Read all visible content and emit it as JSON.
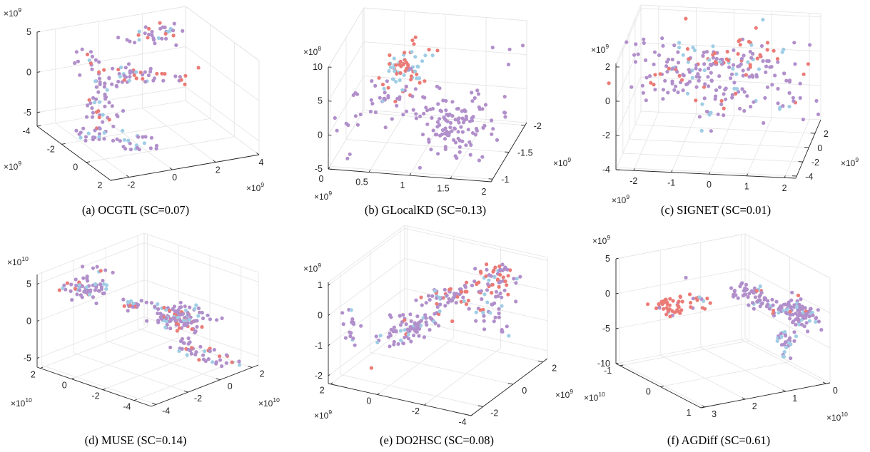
{
  "series_colors": [
    "#B18FCB",
    "#EB7B76",
    "#9FCDE5"
  ],
  "chart_data": [
    {
      "type": "scatter3d",
      "caption": "(a) OCGTL (SC=0.07)",
      "xlim": [
        -2.85,
        4
      ],
      "ylim": [
        -4,
        2
      ],
      "zlim": [
        -6.7,
        5
      ],
      "xticks": [
        -2,
        0,
        2,
        4
      ],
      "yticks": [
        -4,
        -2,
        0,
        2
      ],
      "zticks": [
        -5,
        0,
        5
      ],
      "x_multiplier": {
        "base": "×10",
        "exp": "9"
      },
      "y_multiplier": {
        "base": "×10",
        "exp": "9"
      },
      "z_multiplier": {
        "base": "×10",
        "exp": "9"
      },
      "grid": true,
      "clusters": [
        {
          "from": [
            0.4,
            -2.8,
            3.7
          ],
          "to": [
            3.0,
            -2.8,
            3.9
          ],
          "spread": [
            0.3,
            0.4,
            0.35
          ],
          "counts": [
            22,
            6,
            6
          ]
        },
        {
          "from": [
            -1.3,
            -2.5,
            3.6
          ],
          "to": [
            -1.6,
            -1.5,
            2.2
          ],
          "spread": [
            0.25,
            0.3,
            0.4
          ],
          "counts": [
            10,
            3,
            1
          ]
        },
        {
          "from": [
            -1.65,
            -1,
            2.6
          ],
          "to": [
            2.2,
            -1,
            0.5
          ],
          "spread": [
            0.3,
            0.4,
            0.3
          ],
          "counts": [
            30,
            14,
            6
          ]
        },
        {
          "from": [
            -1.5,
            -1,
            1.9
          ],
          "to": [
            -1.4,
            -1,
            -3.9
          ],
          "spread": [
            0.3,
            0.4,
            0.4
          ],
          "counts": [
            34,
            5,
            6
          ]
        },
        {
          "from": [
            -2.0,
            -1,
            -4.5
          ],
          "to": [
            -1.8,
            -0.5,
            -5.0
          ],
          "spread": [
            0.35,
            0.4,
            0.35
          ],
          "counts": [
            18,
            0,
            5
          ]
        },
        {
          "from": [
            -0.9,
            0.2,
            -5.2
          ],
          "to": [
            -0.3,
            0.2,
            -5.3
          ],
          "spread": [
            0.3,
            0.3,
            0.3
          ],
          "counts": [
            14,
            0,
            6
          ]
        },
        {
          "from": [
            2.9,
            -1,
            1.26
          ],
          "to": [
            2.9,
            -1,
            1.26
          ],
          "spread": [
            0,
            0,
            0
          ],
          "counts": [
            0,
            1,
            0
          ]
        },
        {
          "from": [
            -2.14,
            -1,
            -0.4
          ],
          "to": [
            -2.14,
            -1,
            -0.4
          ],
          "spread": [
            0,
            0,
            0
          ],
          "counts": [
            0,
            1,
            0
          ]
        }
      ]
    },
    {
      "type": "scatter3d",
      "caption": "(b) GLocalKD (SC=0.13)",
      "xlim": [
        0,
        2
      ],
      "ylim": [
        -2.05,
        -0.95
      ],
      "zlim": [
        -5,
        10
      ],
      "xticks": [
        0,
        0.5,
        1,
        1.5,
        2
      ],
      "yticks": [
        -2,
        -1.5,
        -1
      ],
      "zticks": [
        -5,
        0,
        5,
        10
      ],
      "x_multiplier": {
        "base": "×10",
        "exp": "9"
      },
      "y_multiplier": {
        "base": "×10",
        "exp": "9"
      },
      "z_multiplier": {
        "base": "×10",
        "exp": "8"
      },
      "grid": true,
      "clusters": [
        {
          "from": [
            0.7,
            -1.5,
            6.2
          ],
          "to": [
            0.7,
            -1.5,
            4.8
          ],
          "spread": [
            0.12,
            0.15,
            1.6
          ],
          "counts": [
            0,
            38,
            32
          ]
        },
        {
          "from": [
            0.55,
            -1.5,
            2.2
          ],
          "to": [
            0.9,
            -1.5,
            1.5
          ],
          "spread": [
            0.15,
            0.15,
            1.3
          ],
          "counts": [
            35,
            0,
            2
          ]
        },
        {
          "from": [
            1.2,
            -1.5,
            -0.5
          ],
          "to": [
            1.55,
            -1.4,
            -2.5
          ],
          "spread": [
            0.22,
            0.2,
            1.6
          ],
          "counts": [
            110,
            0,
            0
          ]
        },
        {
          "from": [
            0.15,
            -1.4,
            1.5
          ],
          "to": [
            0.45,
            -1.4,
            0
          ],
          "spread": [
            0.15,
            0.2,
            1.0
          ],
          "counts": [
            14,
            0,
            0
          ]
        },
        {
          "from": [
            1.85,
            -1.7,
            7.5
          ],
          "to": [
            1.85,
            -1.7,
            7.5
          ],
          "spread": [
            0.12,
            0.2,
            1.2
          ],
          "counts": [
            4,
            0,
            0
          ]
        },
        {
          "from": [
            1.95,
            -1.3,
            2.5
          ],
          "to": [
            1.95,
            -1.3,
            2.5
          ],
          "spread": [
            0.05,
            0.2,
            0.5
          ],
          "counts": [
            3,
            0,
            0
          ]
        },
        {
          "from": [
            0.2,
            -1.17,
            -4.55
          ],
          "to": [
            0.2,
            -1.17,
            -4.55
          ],
          "spread": [
            0.02,
            0.02,
            0.2
          ],
          "counts": [
            2,
            0,
            0
          ]
        }
      ]
    },
    {
      "type": "scatter3d",
      "caption": "(c) SIGNET (SC=0.01)",
      "xlim": [
        -2.47,
        2.3
      ],
      "ylim": [
        -4.3,
        3.9
      ],
      "zlim": [
        -4,
        2.2
      ],
      "xticks": [
        -2,
        -1,
        0,
        1,
        2
      ],
      "yticks": [
        -4,
        -2,
        0,
        2
      ],
      "zticks": [
        -4,
        -2,
        0,
        2
      ],
      "x_multiplier": {
        "base": "×10",
        "exp": "9"
      },
      "y_multiplier": {
        "base": "×10",
        "exp": "9"
      },
      "z_multiplier": {
        "base": "×10",
        "exp": "9"
      },
      "grid": true,
      "clusters": [
        {
          "from": [
            -2.0,
            0,
            0.3
          ],
          "to": [
            1.9,
            0,
            -0.2
          ],
          "spread": [
            0.5,
            1.8,
            0.55
          ],
          "counts": [
            150,
            25,
            30
          ]
        },
        {
          "from": [
            0.4,
            0,
            1.3
          ],
          "to": [
            0.4,
            0,
            1.3
          ],
          "spread": [
            0.5,
            1.2,
            0.45
          ],
          "counts": [
            8,
            25,
            5
          ]
        },
        {
          "from": [
            -0.2,
            0,
            -1.5
          ],
          "to": [
            -0.35,
            0,
            -3.0
          ],
          "spread": [
            0.2,
            0.8,
            0.25
          ],
          "counts": [
            8,
            1,
            3
          ]
        }
      ]
    },
    {
      "type": "scatter3d",
      "caption": "(d) MUSE (SC=0.14)",
      "xlim": [
        -4.3,
        2.4
      ],
      "ylim": [
        -5.1,
        2.2
      ],
      "zlim": [
        -6.2,
        6.3
      ],
      "xticks": [
        -4,
        -2,
        0,
        2
      ],
      "yticks": [
        -4,
        -2,
        0,
        2
      ],
      "zticks": [
        -5,
        0,
        5
      ],
      "x_multiplier": {
        "base": "×10",
        "exp": "10"
      },
      "y_multiplier": {
        "base": "×10",
        "exp": "10"
      },
      "z_multiplier": {
        "base": "×10",
        "exp": "10"
      },
      "grid": true,
      "clusters": [
        {
          "from": [
            -3.1,
            0.7,
            4.3
          ],
          "to": [
            -2.4,
            0.7,
            4.0
          ],
          "spread": [
            0.35,
            0.5,
            0.55
          ],
          "counts": [
            45,
            6,
            10
          ]
        },
        {
          "from": [
            -2.0,
            0.7,
            6.0
          ],
          "to": [
            -2.0,
            0.7,
            6.0
          ],
          "spread": [
            0.3,
            0.3,
            0.3
          ],
          "counts": [
            5,
            1,
            1
          ]
        },
        {
          "from": [
            -2.3,
            -1.45,
            3.3
          ],
          "to": [
            -1.4,
            -1.45,
            2.6
          ],
          "spread": [
            0.2,
            0.2,
            0.3
          ],
          "counts": [
            12,
            4,
            6
          ]
        },
        {
          "from": [
            0.6,
            -1.45,
            -1.0
          ],
          "to": [
            1.4,
            -1.45,
            -1.5
          ],
          "spread": [
            0.45,
            0.7,
            0.8
          ],
          "counts": [
            80,
            20,
            20
          ]
        },
        {
          "from": [
            -0.68,
            -2.9,
            -2.2
          ],
          "to": [
            1.66,
            -4.4,
            -6.0
          ],
          "spread": [
            0.2,
            0.2,
            0.4
          ],
          "counts": [
            30,
            8,
            6
          ]
        },
        {
          "from": [
            -3.83,
            0.74,
            5.8
          ],
          "to": [
            -3.83,
            0.74,
            5.8
          ],
          "spread": [
            0,
            0,
            0
          ],
          "counts": [
            0,
            1,
            0
          ]
        }
      ]
    },
    {
      "type": "scatter3d",
      "caption": "(e) DO2HSC (SC=0.08)",
      "xlim": [
        -2.8,
        2.3
      ],
      "ylim": [
        -4,
        2.1
      ],
      "zlim": [
        -2.26,
        1.1
      ],
      "xticks": [
        -2,
        0,
        2
      ],
      "yticks": [
        -4,
        -2,
        0,
        2
      ],
      "zticks": [
        -2,
        -1,
        0,
        1
      ],
      "x_multiplier": {
        "base": "×10",
        "exp": "9"
      },
      "y_multiplier": {
        "base": "×10",
        "exp": "9"
      },
      "z_multiplier": {
        "base": "×10",
        "exp": "9"
      },
      "grid": true,
      "clusters": [
        {
          "from": [
            -2.8,
            1.19,
            -0.05
          ],
          "to": [
            -2.8,
            1.0,
            -0.45
          ],
          "spread": [
            0.05,
            0.25,
            0.2
          ],
          "counts": [
            16,
            0,
            2
          ]
        },
        {
          "from": [
            -2.55,
            -0.34,
            -0.44
          ],
          "to": [
            -0.42,
            -0.95,
            -0.3
          ],
          "spread": [
            0.3,
            0.4,
            0.15
          ],
          "counts": [
            70,
            3,
            12
          ]
        },
        {
          "from": [
            -0.89,
            -0.95,
            0.36
          ],
          "to": [
            1.95,
            -2.17,
            -0.24
          ],
          "spread": [
            0.3,
            0.4,
            0.2
          ],
          "counts": [
            55,
            22,
            12
          ]
        },
        {
          "from": [
            1.02,
            -2.78,
            0.8
          ],
          "to": [
            1.02,
            -2.78,
            0.8
          ],
          "spread": [
            0.35,
            0.4,
            0.18
          ],
          "counts": [
            20,
            20,
            4
          ]
        },
        {
          "from": [
            1.0,
            -2.5,
            -0.8
          ],
          "to": [
            1.0,
            -2.5,
            -0.8
          ],
          "spread": [
            0.3,
            0.4,
            0.2
          ],
          "counts": [
            14,
            1,
            6
          ]
        },
        {
          "from": [
            -1.83,
            0.88,
            -1.89
          ],
          "to": [
            -1.83,
            0.88,
            -1.89
          ],
          "spread": [
            0,
            0,
            0
          ],
          "counts": [
            0,
            1,
            0
          ]
        }
      ]
    },
    {
      "type": "scatter3d",
      "caption": "(f) AGDiff (SC=0.61)",
      "xlim": [
        -0.1,
        3.1
      ],
      "ylim": [
        -1.1,
        1
      ],
      "zlim": [
        -10,
        5
      ],
      "xticks": [
        0,
        1,
        2,
        3
      ],
      "yticks": [
        -1,
        0,
        1
      ],
      "zticks": [
        -10,
        -5,
        0,
        5
      ],
      "x_multiplier": {
        "base": "×10",
        "exp": "10"
      },
      "y_multiplier": {
        "base": "×10",
        "exp": "10"
      },
      "z_multiplier": {
        "base": "×10",
        "exp": "9"
      },
      "grid": true,
      "clusters": [
        {
          "from": [
            2.87,
            -0.47,
            -0.7
          ],
          "to": [
            2.0,
            -0.05,
            1.1
          ],
          "spread": [
            0.15,
            0.15,
            0.5
          ],
          "counts": [
            6,
            45,
            4
          ]
        },
        {
          "from": [
            0.93,
            -0.05,
            1.1
          ],
          "to": [
            0.93,
            -0.05,
            1.1
          ],
          "spread": [
            0.15,
            0.15,
            0.6
          ],
          "counts": [
            30,
            2,
            2
          ]
        },
        {
          "from": [
            0.8,
            0.05,
            0
          ],
          "to": [
            0.3,
            0.4,
            -1.5
          ],
          "spread": [
            0.12,
            0.12,
            0.5
          ],
          "counts": [
            35,
            2,
            8
          ]
        },
        {
          "from": [
            0.15,
            0.58,
            -1.1
          ],
          "to": [
            0.15,
            0.58,
            -1.1
          ],
          "spread": [
            0.15,
            0.15,
            0.9
          ],
          "counts": [
            60,
            3,
            15
          ]
        },
        {
          "from": [
            0.38,
            0.37,
            -5.5
          ],
          "to": [
            0.38,
            0.37,
            -5.5
          ],
          "spread": [
            0.1,
            0.1,
            0.9
          ],
          "counts": [
            18,
            0,
            12
          ]
        },
        {
          "from": [
            2.42,
            -0.05,
            4.7
          ],
          "to": [
            2.42,
            -0.05,
            4.7
          ],
          "spread": [
            0,
            0,
            0
          ],
          "counts": [
            1,
            0,
            0
          ]
        }
      ]
    }
  ]
}
